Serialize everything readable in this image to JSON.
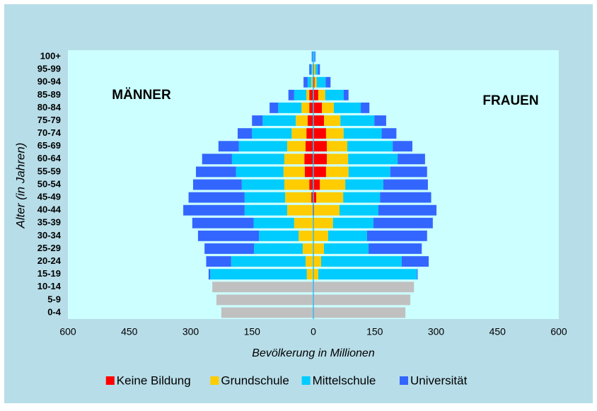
{
  "chart_data": {
    "type": "pyramid",
    "left_label": "MÄNNER",
    "right_label": "FRAUEN",
    "xlabel": "Bevölkerung in Millionen",
    "ylabel": "Alter (in Jahren)",
    "categories": [
      "100+",
      "95-99",
      "90-94",
      "85-89",
      "80-84",
      "75-79",
      "70-74",
      "65-69",
      "60-64",
      "55-59",
      "50-54",
      "45-49",
      "40-44",
      "35-39",
      "30-34",
      "25-29",
      "20-24",
      "15-19",
      "10-14",
      "5-9",
      "0-4"
    ],
    "xlim": [
      -600,
      600
    ],
    "xticks": [
      {
        "value": -600,
        "label": "600"
      },
      {
        "value": -450,
        "label": "450"
      },
      {
        "value": -300,
        "label": "300"
      },
      {
        "value": -150,
        "label": "150"
      },
      0,
      150,
      300,
      450,
      600
    ],
    "series": [
      {
        "name": "Keine Bildung",
        "color": "#ff0000",
        "male_values": [
          0,
          -1,
          -2,
          -10,
          -10,
          -14,
          -17,
          -19,
          -22,
          -21,
          -10,
          -5,
          -2,
          0,
          0,
          0,
          0,
          0,
          0,
          0,
          0
        ],
        "female_values": [
          0,
          2,
          3,
          12,
          21,
          26,
          31,
          33,
          33,
          31,
          16,
          7,
          2,
          0,
          0,
          0,
          0,
          0,
          0,
          0,
          0
        ]
      },
      {
        "name": "Grundschule",
        "color": "#ffcc00",
        "male_values": [
          0,
          -2,
          -3,
          -7,
          -19,
          -29,
          -36,
          -45,
          -49,
          -52,
          -61,
          -64,
          -62,
          -47,
          -36,
          -26,
          -19,
          -16,
          0,
          0,
          0
        ],
        "female_values": [
          0,
          3,
          5,
          17,
          29,
          40,
          43,
          50,
          52,
          55,
          62,
          66,
          62,
          48,
          36,
          26,
          19,
          12,
          0,
          0,
          0
        ]
      },
      {
        "name": "Mittelschule",
        "color": "#00ccff",
        "male_values": [
          -2,
          -3,
          -9,
          -30,
          -57,
          -81,
          -97,
          -118,
          -128,
          -116,
          -104,
          -99,
          -104,
          -99,
          -97,
          -119,
          -182,
          -236,
          0,
          0,
          0
        ],
        "female_values": [
          3,
          6,
          22,
          45,
          66,
          83,
          93,
          111,
          121,
          102,
          93,
          90,
          95,
          99,
          95,
          109,
          197,
          241,
          0,
          0,
          0
        ]
      },
      {
        "name": "Universität",
        "color": "#3366ff",
        "male_values": [
          -2,
          -4,
          -10,
          -14,
          -21,
          -26,
          -35,
          -50,
          -73,
          -98,
          -119,
          -137,
          -150,
          -150,
          -149,
          -121,
          -61,
          -4,
          0,
          0,
          0
        ],
        "female_values": [
          2,
          5,
          12,
          12,
          21,
          29,
          36,
          48,
          67,
          90,
          109,
          125,
          142,
          145,
          147,
          130,
          66,
          2,
          0,
          0,
          0
        ]
      },
      {
        "color": "#c0c0c0",
        "male_values": [
          0,
          0,
          0,
          0,
          0,
          0,
          0,
          0,
          0,
          0,
          0,
          0,
          0,
          0,
          0,
          0,
          0,
          0,
          -247,
          -237,
          -225
        ],
        "female_values": [
          0,
          0,
          0,
          0,
          0,
          0,
          0,
          0,
          0,
          0,
          0,
          0,
          0,
          0,
          0,
          0,
          0,
          0,
          246,
          237,
          225
        ]
      }
    ]
  }
}
